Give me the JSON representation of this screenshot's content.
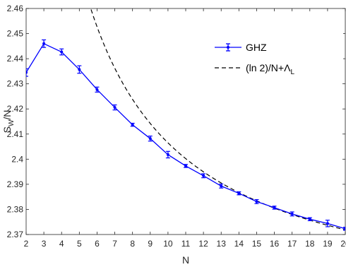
{
  "chart_data": {
    "type": "line",
    "xlabel": "N",
    "ylabel_main": "S",
    "ylabel_sub": "W",
    "ylabel_tail": "/N",
    "xlim": [
      2,
      20
    ],
    "ylim": [
      2.37,
      2.46
    ],
    "xticks": [
      2,
      3,
      4,
      5,
      6,
      7,
      8,
      9,
      10,
      11,
      12,
      13,
      14,
      15,
      16,
      17,
      18,
      19,
      20
    ],
    "yticks": [
      "2.37",
      "2.38",
      "2.39",
      "2.4",
      "2.41",
      "2.42",
      "2.43",
      "2.44",
      "2.45",
      "2.46"
    ],
    "grid": false,
    "legend_position": "top-right",
    "series": [
      {
        "name": "GHZ",
        "style": "solid-errorbar",
        "color": "#0000ff",
        "x": [
          2,
          3,
          4,
          5,
          6,
          7,
          8,
          9,
          10,
          11,
          12,
          13,
          14,
          15,
          16,
          17,
          18,
          19,
          20
        ],
        "y": [
          2.4345,
          2.446,
          2.4427,
          2.4357,
          2.4277,
          2.4206,
          2.4137,
          2.4082,
          2.4018,
          2.3973,
          2.3934,
          2.3893,
          2.3864,
          2.3831,
          2.3807,
          2.3782,
          2.3761,
          2.3744,
          2.3723
        ],
        "err": [
          0.0015,
          0.0015,
          0.0012,
          0.0015,
          0.001,
          0.001,
          0.0006,
          0.001,
          0.0013,
          0.0006,
          0.0008,
          0.0008,
          0.0006,
          0.0008,
          0.0006,
          0.0008,
          0.0006,
          0.0013,
          0.0006
        ]
      },
      {
        "name_main": "(ln 2)/N+",
        "name_greek": "Λ",
        "name_sub": "L",
        "style": "dashed",
        "color": "#000000",
        "lambda_L": 2.3372,
        "ln2": 0.6931
      }
    ]
  }
}
